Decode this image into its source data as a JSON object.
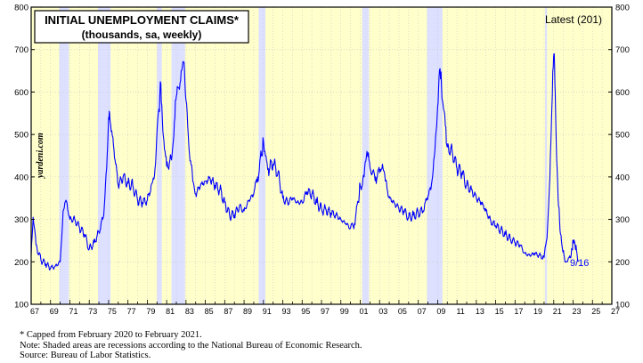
{
  "chart_data": {
    "type": "line",
    "title": "INITIAL UNEMPLOYMENT CLAIMS*",
    "subtitle": "(thousands, sa, weekly)",
    "latest_label": "Latest (201)",
    "end_label": "9/16",
    "watermark": "yardeni.com",
    "ylim": [
      100,
      800
    ],
    "y_ticks": [
      100,
      200,
      300,
      400,
      500,
      600,
      700,
      800
    ],
    "x_ticks": [
      "67",
      "69",
      "71",
      "73",
      "75",
      "77",
      "79",
      "81",
      "83",
      "85",
      "87",
      "89",
      "91",
      "93",
      "95",
      "97",
      "99",
      "01",
      "03",
      "05",
      "07",
      "09",
      "11",
      "13",
      "15",
      "17",
      "19",
      "21",
      "23",
      "25",
      "27"
    ],
    "xlim_years": [
      1967,
      2027
    ],
    "background_color": "#ffffcc",
    "recession_color": "#dde0ff",
    "line_color": "#0000ff",
    "recessions": [
      [
        1969.9,
        1970.9
      ],
      [
        1973.9,
        1975.2
      ],
      [
        1980.0,
        1980.5
      ],
      [
        1981.5,
        1982.9
      ],
      [
        1990.5,
        1991.2
      ],
      [
        2001.2,
        2001.9
      ],
      [
        2007.9,
        2009.5
      ],
      [
        2020.1,
        2020.3
      ]
    ],
    "series": [
      {
        "points": [
          [
            1967.0,
            215
          ],
          [
            1967.2,
            305
          ],
          [
            1967.5,
            240
          ],
          [
            1968.0,
            205
          ],
          [
            1968.5,
            195
          ],
          [
            1969.0,
            185
          ],
          [
            1969.5,
            190
          ],
          [
            1970.0,
            200
          ],
          [
            1970.3,
            320
          ],
          [
            1970.6,
            345
          ],
          [
            1971.0,
            300
          ],
          [
            1971.5,
            300
          ],
          [
            1972.0,
            280
          ],
          [
            1972.5,
            265
          ],
          [
            1973.0,
            230
          ],
          [
            1973.5,
            245
          ],
          [
            1974.0,
            270
          ],
          [
            1974.5,
            310
          ],
          [
            1974.8,
            420
          ],
          [
            1975.0,
            540
          ],
          [
            1975.1,
            550
          ],
          [
            1975.5,
            475
          ],
          [
            1976.0,
            380
          ],
          [
            1976.5,
            400
          ],
          [
            1977.0,
            385
          ],
          [
            1977.5,
            380
          ],
          [
            1978.0,
            345
          ],
          [
            1978.5,
            340
          ],
          [
            1979.0,
            345
          ],
          [
            1979.5,
            385
          ],
          [
            1979.8,
            420
          ],
          [
            1980.2,
            560
          ],
          [
            1980.4,
            620
          ],
          [
            1980.6,
            510
          ],
          [
            1981.0,
            425
          ],
          [
            1981.5,
            440
          ],
          [
            1981.8,
            530
          ],
          [
            1982.0,
            590
          ],
          [
            1982.2,
            610
          ],
          [
            1982.5,
            650
          ],
          [
            1982.8,
            670
          ],
          [
            1983.0,
            580
          ],
          [
            1983.3,
            470
          ],
          [
            1983.7,
            390
          ],
          [
            1984.0,
            360
          ],
          [
            1984.5,
            380
          ],
          [
            1985.0,
            390
          ],
          [
            1985.5,
            395
          ],
          [
            1986.0,
            380
          ],
          [
            1986.5,
            370
          ],
          [
            1987.0,
            340
          ],
          [
            1987.5,
            310
          ],
          [
            1988.0,
            310
          ],
          [
            1988.5,
            330
          ],
          [
            1989.0,
            320
          ],
          [
            1989.5,
            345
          ],
          [
            1990.0,
            360
          ],
          [
            1990.4,
            400
          ],
          [
            1990.8,
            450
          ],
          [
            1991.0,
            485
          ],
          [
            1991.2,
            450
          ],
          [
            1991.5,
            420
          ],
          [
            1992.0,
            430
          ],
          [
            1992.5,
            410
          ],
          [
            1993.0,
            350
          ],
          [
            1993.5,
            340
          ],
          [
            1994.0,
            350
          ],
          [
            1994.5,
            340
          ],
          [
            1995.0,
            340
          ],
          [
            1995.5,
            365
          ],
          [
            1996.0,
            360
          ],
          [
            1996.5,
            340
          ],
          [
            1997.0,
            325
          ],
          [
            1997.5,
            320
          ],
          [
            1998.0,
            315
          ],
          [
            1998.5,
            310
          ],
          [
            1999.0,
            300
          ],
          [
            1999.5,
            290
          ],
          [
            2000.0,
            280
          ],
          [
            2000.4,
            290
          ],
          [
            2000.8,
            340
          ],
          [
            2001.0,
            380
          ],
          [
            2001.4,
            400
          ],
          [
            2001.7,
            460
          ],
          [
            2001.9,
            440
          ],
          [
            2002.2,
            405
          ],
          [
            2002.6,
            400
          ],
          [
            2003.0,
            410
          ],
          [
            2003.3,
            430
          ],
          [
            2003.6,
            390
          ],
          [
            2004.0,
            350
          ],
          [
            2004.5,
            340
          ],
          [
            2005.0,
            325
          ],
          [
            2005.5,
            320
          ],
          [
            2006.0,
            305
          ],
          [
            2006.5,
            310
          ],
          [
            2007.0,
            315
          ],
          [
            2007.5,
            320
          ],
          [
            2007.9,
            350
          ],
          [
            2008.3,
            370
          ],
          [
            2008.6,
            440
          ],
          [
            2008.9,
            520
          ],
          [
            2009.1,
            610
          ],
          [
            2009.25,
            655
          ],
          [
            2009.5,
            580
          ],
          [
            2009.8,
            520
          ],
          [
            2010.0,
            470
          ],
          [
            2010.5,
            460
          ],
          [
            2011.0,
            420
          ],
          [
            2011.5,
            410
          ],
          [
            2012.0,
            380
          ],
          [
            2012.5,
            370
          ],
          [
            2013.0,
            350
          ],
          [
            2013.5,
            340
          ],
          [
            2014.0,
            320
          ],
          [
            2014.5,
            295
          ],
          [
            2015.0,
            285
          ],
          [
            2015.5,
            275
          ],
          [
            2016.0,
            265
          ],
          [
            2016.5,
            255
          ],
          [
            2017.0,
            245
          ],
          [
            2017.5,
            240
          ],
          [
            2018.0,
            220
          ],
          [
            2018.5,
            215
          ],
          [
            2019.0,
            220
          ],
          [
            2019.5,
            215
          ],
          [
            2020.0,
            210
          ],
          [
            2020.3,
            255
          ],
          [
            2020.6,
            400
          ],
          [
            2020.8,
            560
          ],
          [
            2020.95,
            660
          ],
          [
            2021.05,
            690
          ],
          [
            2021.15,
            600
          ],
          [
            2021.3,
            440
          ],
          [
            2021.5,
            330
          ],
          [
            2021.7,
            265
          ],
          [
            2021.9,
            230
          ],
          [
            2022.1,
            210
          ],
          [
            2022.4,
            200
          ],
          [
            2022.7,
            210
          ],
          [
            2022.9,
            230
          ],
          [
            2023.0,
            250
          ],
          [
            2023.2,
            240
          ],
          [
            2023.4,
            220
          ],
          [
            2023.58,
            201
          ]
        ]
      }
    ]
  },
  "footnotes": [
    "*   Capped from February 2020 to February 2021.",
    "     Note: Shaded areas are recessions according to the National Bureau of Economic Research.",
    "     Source: Bureau of Labor Statistics."
  ]
}
